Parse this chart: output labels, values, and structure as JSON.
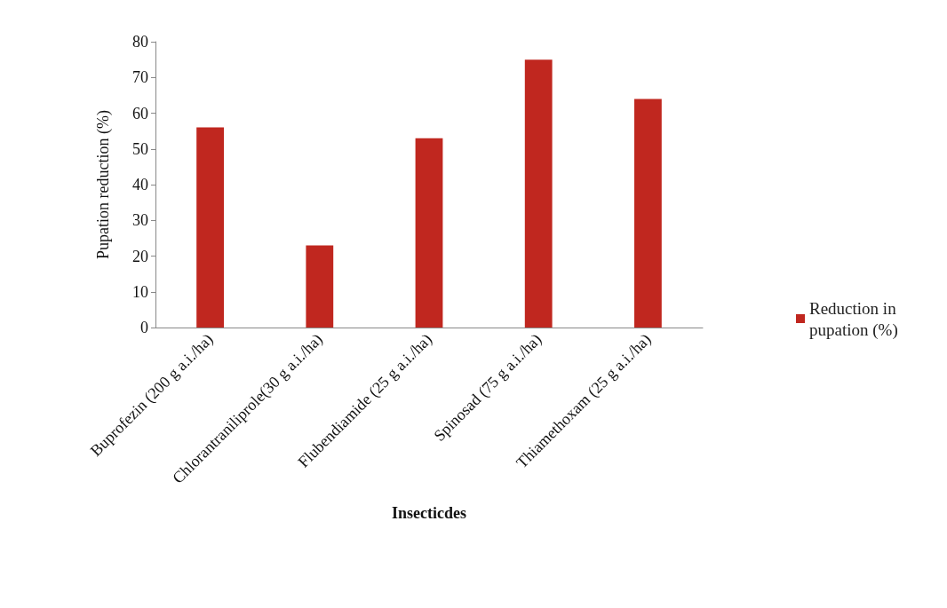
{
  "chart_data": {
    "type": "bar",
    "xlabel": "Insecticdes",
    "ylabel": "Pupation reduction (%)",
    "categories": [
      "Buprofezin (200 g a.i./ha)",
      "Chlorantraniliprole(30 g a.i./ha)",
      "Flubendiamide (25 g a.i./ha)",
      "Spinosad (75 g a.i./ha)",
      "Thiamethoxam (25 g a.i./ha)"
    ],
    "series": [
      {
        "name": "Reduction in pupation (%)",
        "color": "#c0271f",
        "values": [
          56,
          23,
          53,
          75,
          64
        ]
      }
    ],
    "ylim": [
      0,
      80
    ],
    "yticks": [
      0,
      10,
      20,
      30,
      40,
      50,
      60,
      70,
      80
    ],
    "grid": false,
    "legend": "right"
  }
}
